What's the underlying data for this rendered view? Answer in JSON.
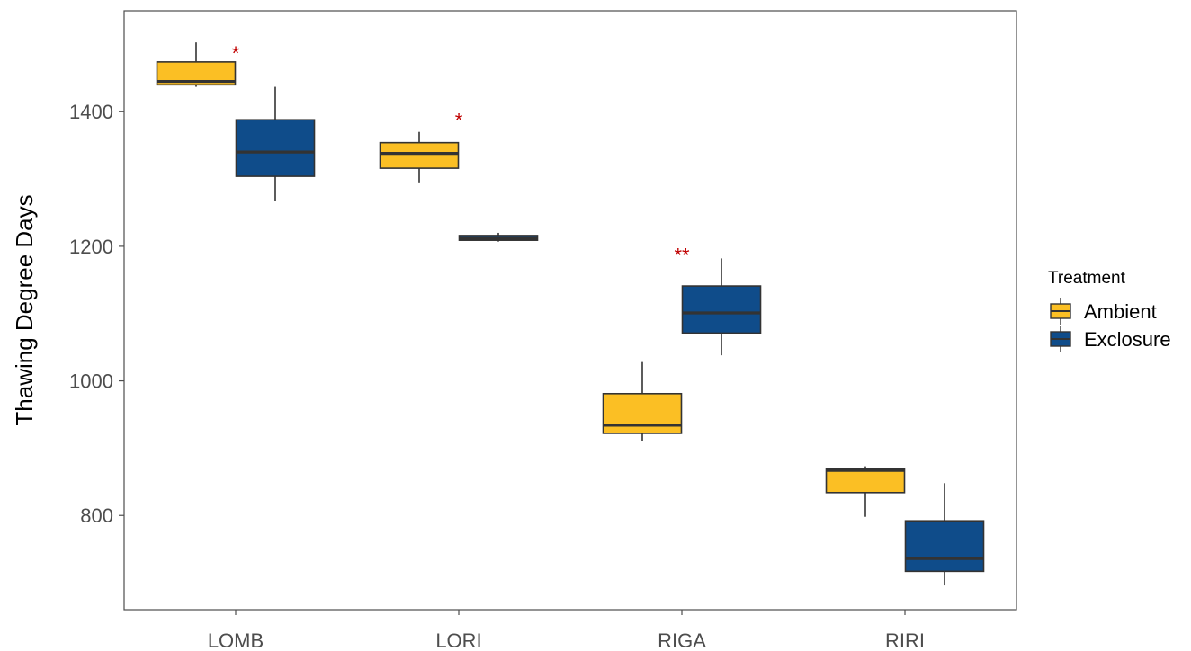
{
  "chart_data": {
    "type": "boxplot",
    "title": "",
    "xlabel": "",
    "ylabel": "Thawing Degree Days",
    "ylim": [
      660,
      1550
    ],
    "yticks": [
      800,
      1000,
      1200,
      1400
    ],
    "categories": [
      "LOMB",
      "LORI",
      "RIGA",
      "RIRI"
    ],
    "grid": false,
    "legend": {
      "title": "Treatment",
      "position": "right",
      "entries": [
        "Ambient",
        "Exclosure"
      ]
    },
    "series": [
      {
        "name": "Ambient",
        "color": "#fbbf24",
        "boxes": [
          {
            "category": "LOMB",
            "min": 1437,
            "q1": 1440,
            "median": 1445,
            "q3": 1474,
            "max": 1503
          },
          {
            "category": "LORI",
            "min": 1295,
            "q1": 1316,
            "median": 1338,
            "q3": 1354,
            "max": 1370
          },
          {
            "category": "RIGA",
            "min": 911,
            "q1": 922,
            "median": 934,
            "q3": 981,
            "max": 1028
          },
          {
            "category": "RIRI",
            "min": 798,
            "q1": 834,
            "median": 867,
            "q3": 870,
            "max": 873
          }
        ]
      },
      {
        "name": "Exclosure",
        "color": "#0f4c8a",
        "boxes": [
          {
            "category": "LOMB",
            "min": 1267,
            "q1": 1304,
            "median": 1340,
            "q3": 1388,
            "max": 1437
          },
          {
            "category": "LORI",
            "min": 1207,
            "q1": 1209,
            "median": 1212,
            "q3": 1216,
            "max": 1220
          },
          {
            "category": "RIGA",
            "min": 1038,
            "q1": 1071,
            "median": 1101,
            "q3": 1141,
            "max": 1182
          },
          {
            "category": "RIRI",
            "min": 696,
            "q1": 717,
            "median": 736,
            "q3": 792,
            "max": 848
          }
        ]
      }
    ],
    "annotations": [
      {
        "category": "LOMB",
        "text": "*",
        "y": 1490
      },
      {
        "category": "LORI",
        "text": "*",
        "y": 1390
      },
      {
        "category": "RIGA",
        "text": "**",
        "y": 1190
      }
    ]
  }
}
